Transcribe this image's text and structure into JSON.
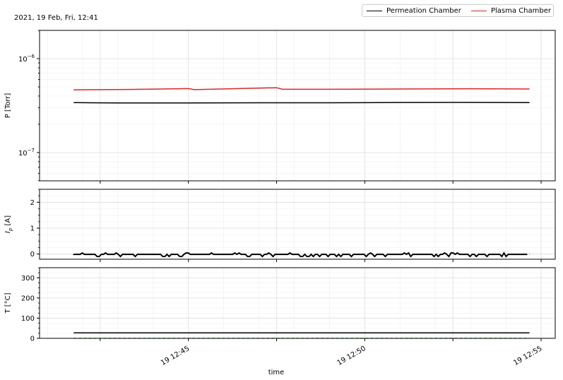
{
  "header": {
    "timestamp_text": "2021, 19 Feb, Fri, 12:41"
  },
  "legend": {
    "entries": [
      {
        "label": "Permeation Chamber",
        "color": "#000000"
      },
      {
        "label": "Plasma Chamber",
        "color": "#d62728"
      }
    ]
  },
  "chart_data": [
    {
      "type": "line",
      "panel": "pressure",
      "ylabel": "P [Torr]",
      "yscale": "log",
      "ylim": [
        5e-08,
        2e-06
      ],
      "yticks": [
        {
          "value": 1e-06,
          "label": "10−6"
        },
        {
          "value": 1e-07,
          "label": "10−7"
        }
      ],
      "grid": true,
      "xlim": [
        "12:41.00",
        "12:55.30"
      ],
      "series": [
        {
          "name": "Permeation Chamber",
          "color": "#000000",
          "x": [
            "12:41:45",
            "12:43",
            "12:45",
            "12:47",
            "12:49",
            "12:51",
            "12:53",
            "12:54:40"
          ],
          "y": [
            3.4e-07,
            3.38e-07,
            3.38e-07,
            3.39e-07,
            3.39e-07,
            3.41e-07,
            3.42e-07,
            3.4e-07
          ]
        },
        {
          "name": "Plasma Chamber",
          "color": "#d62728",
          "x": [
            "12:41:45",
            "12:43:20",
            "12:45",
            "12:45:10",
            "12:47:30",
            "12:47:40",
            "12:49",
            "12:51",
            "12:53",
            "12:54:40"
          ],
          "y": [
            4.65e-07,
            4.7e-07,
            4.8e-07,
            4.68e-07,
            4.9e-07,
            4.72e-07,
            4.72e-07,
            4.75e-07,
            4.78e-07,
            4.75e-07
          ]
        }
      ]
    },
    {
      "type": "line",
      "panel": "current",
      "ylabel": "Ip [A]",
      "ylabel_main": "I",
      "ylabel_sub": "p",
      "ylabel_unit": " [A]",
      "ylim": [
        -0.2,
        2.5
      ],
      "yticks": [
        {
          "value": 0,
          "label": "0"
        },
        {
          "value": 1,
          "label": "1"
        },
        {
          "value": 2,
          "label": "2"
        }
      ],
      "grid": true,
      "series": [
        {
          "name": "Permeation Chamber",
          "color": "#000000",
          "x": [
            "12:41:45",
            "12:54:40"
          ],
          "y": [
            0.0,
            0.0
          ]
        }
      ]
    },
    {
      "type": "line",
      "panel": "temperature",
      "ylabel": "T [°C]",
      "ylim": [
        0,
        350
      ],
      "yticks": [
        {
          "value": 0,
          "label": "0"
        },
        {
          "value": 100,
          "label": "100"
        },
        {
          "value": 200,
          "label": "200"
        },
        {
          "value": 300,
          "label": "300"
        }
      ],
      "grid": true,
      "xlabel": "time",
      "xticks": [
        {
          "value": "12:45",
          "label": "19 12:45"
        },
        {
          "value": "12:50",
          "label": "19 12:50"
        },
        {
          "value": "12:55",
          "label": "19 12:55"
        }
      ],
      "series": [
        {
          "name": "Permeation Chamber",
          "color": "#000000",
          "x": [
            "12:41:45",
            "12:54:40"
          ],
          "y": [
            27,
            27
          ]
        },
        {
          "name": "Plasma Chamber",
          "color": "#6aaa64",
          "x": [
            "12:41:45",
            "12:54:40"
          ],
          "y": [
            0,
            0
          ]
        }
      ]
    }
  ]
}
